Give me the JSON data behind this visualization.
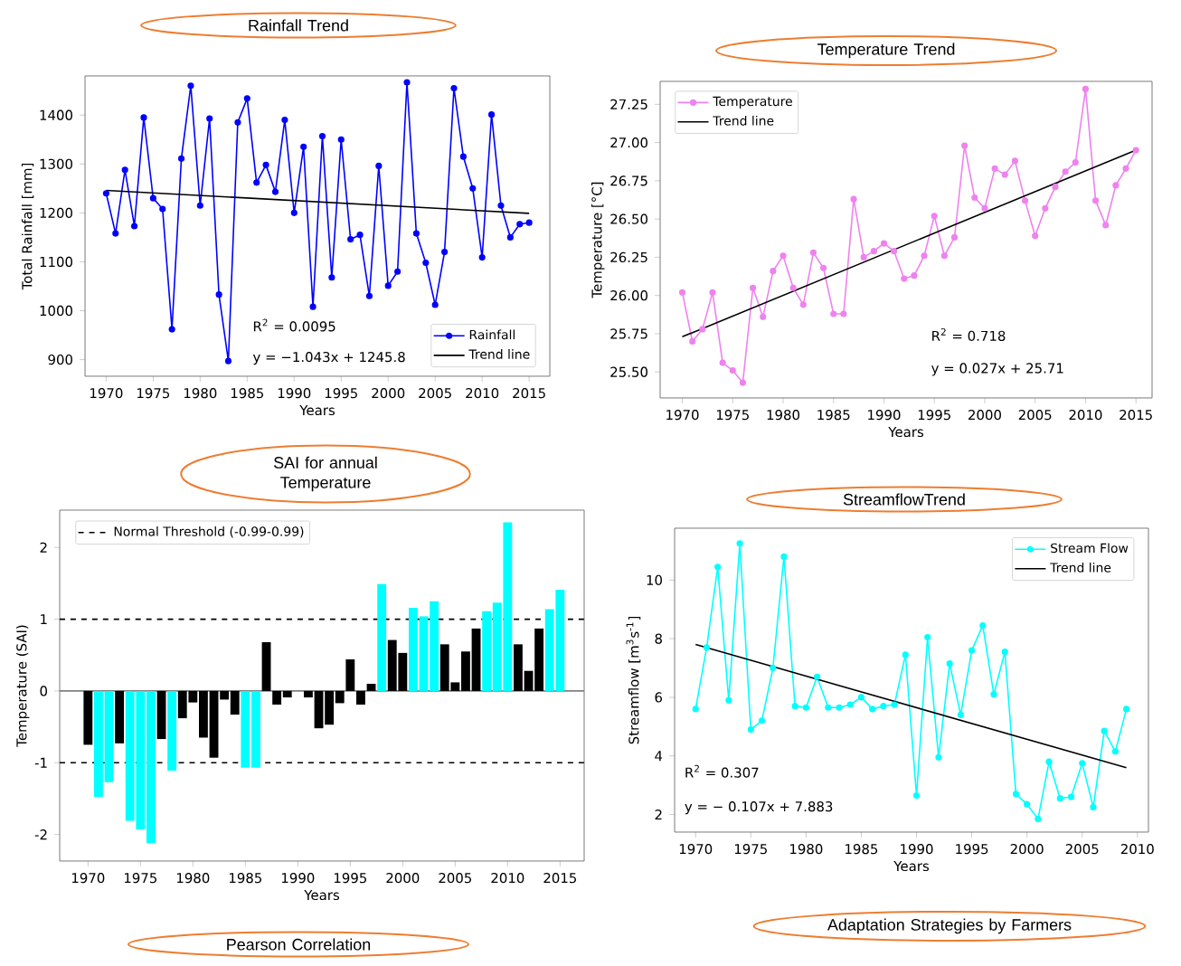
{
  "chart_data": [
    {
      "type": "line",
      "title": "Rainfall Trend",
      "xlabel": "Years",
      "ylabel": "Total Rainfall [mm]",
      "x": [
        1970,
        1971,
        1972,
        1973,
        1974,
        1975,
        1976,
        1977,
        1978,
        1979,
        1980,
        1981,
        1982,
        1983,
        1984,
        1985,
        1986,
        1987,
        1988,
        1989,
        1990,
        1991,
        1992,
        1993,
        1994,
        1995,
        1996,
        1997,
        1998,
        1999,
        2000,
        2001,
        2002,
        2003,
        2004,
        2005,
        2006,
        2007,
        2008,
        2009,
        2010,
        2011,
        2012,
        2013,
        2014,
        2015
      ],
      "series": [
        {
          "name": "Rainfall",
          "color": "#0000ff",
          "marker": "circle",
          "values": [
            1240,
            1158,
            1288,
            1173,
            1395,
            1230,
            1208,
            962,
            1311,
            1460,
            1215,
            1393,
            1033,
            897,
            1385,
            1434,
            1262,
            1298,
            1243,
            1390,
            1200,
            1335,
            1008,
            1357,
            1068,
            1350,
            1146,
            1155,
            1030,
            1296,
            1051,
            1080,
            1467,
            1158,
            1098,
            1012,
            1120,
            1455,
            1315,
            1250,
            1109,
            1401,
            1215,
            1150,
            1177,
            1180
          ]
        },
        {
          "name": "Trend line",
          "color": "#000000",
          "marker": "none",
          "x": [
            1970,
            2015
          ],
          "values": [
            1246,
            1199
          ]
        }
      ],
      "xlim": [
        1967.75,
        2017.2
      ],
      "ylim": [
        866,
        1480
      ],
      "xticks": [
        1970,
        1975,
        1980,
        1985,
        1990,
        1995,
        2000,
        2005,
        2010,
        2015
      ],
      "yticks": [
        900,
        1000,
        1100,
        1200,
        1300,
        1400
      ],
      "legend": "bottom right",
      "annotations": [
        "R$^{2}$ = 0.0095",
        "y = −1.043x + 1245.8"
      ]
    },
    {
      "type": "line",
      "title": "Temperature Trend",
      "xlabel": "Years",
      "ylabel": "Temperature [°C]",
      "x": [
        1970,
        1971,
        1972,
        1973,
        1974,
        1975,
        1976,
        1977,
        1978,
        1979,
        1980,
        1981,
        1982,
        1983,
        1984,
        1985,
        1986,
        1987,
        1988,
        1989,
        1990,
        1991,
        1992,
        1993,
        1994,
        1995,
        1996,
        1997,
        1998,
        1999,
        2000,
        2001,
        2002,
        2003,
        2004,
        2005,
        2006,
        2007,
        2008,
        2009,
        2010,
        2011,
        2012,
        2013,
        2014,
        2015
      ],
      "series": [
        {
          "name": "Temperature",
          "color": "#ee82ee",
          "marker": "circle",
          "values": [
            26.02,
            25.7,
            25.78,
            26.02,
            25.56,
            25.51,
            25.43,
            26.05,
            25.86,
            26.16,
            26.26,
            26.05,
            25.94,
            26.28,
            26.18,
            25.88,
            25.88,
            26.63,
            26.25,
            26.29,
            26.34,
            26.29,
            26.11,
            26.13,
            26.26,
            26.52,
            26.26,
            26.38,
            26.98,
            26.64,
            26.57,
            26.83,
            26.79,
            26.88,
            26.62,
            26.39,
            26.57,
            26.71,
            26.81,
            26.87,
            27.35,
            26.62,
            26.46,
            26.72,
            26.83,
            26.95
          ]
        },
        {
          "name": "Trend line",
          "color": "#000000",
          "marker": "none",
          "x": [
            1970,
            2015
          ],
          "values": [
            25.73,
            26.95
          ]
        }
      ],
      "xlim": [
        1967.8,
        2016.6
      ],
      "ylim": [
        25.33,
        27.4
      ],
      "xticks": [
        1970,
        1975,
        1980,
        1985,
        1990,
        1995,
        2000,
        2005,
        2010,
        2015
      ],
      "yticks": [
        {
          "value": 25.5,
          "label": "25.50"
        },
        25.75,
        {
          "value": 26.0,
          "label": "26.00"
        },
        26.25,
        {
          "value": 26.5,
          "label": "26.50"
        },
        26.75,
        {
          "value": 27.0,
          "label": "27.00"
        },
        27.25
      ],
      "legend": "top left",
      "annotations": [
        "R$^{2}$ = 0.718",
        "y = 0.027x + 25.71"
      ]
    },
    {
      "type": "bar",
      "title": "SAI for annual Temperature",
      "xlabel": "Years",
      "ylabel": "Temperature (SAI)",
      "x": [
        1970,
        1971,
        1972,
        1973,
        1974,
        1975,
        1976,
        1977,
        1978,
        1979,
        1980,
        1981,
        1982,
        1983,
        1984,
        1985,
        1986,
        1987,
        1988,
        1989,
        1990,
        1991,
        1992,
        1993,
        1994,
        1995,
        1996,
        1997,
        1998,
        1999,
        2000,
        2001,
        2002,
        2003,
        2004,
        2005,
        2006,
        2007,
        2008,
        2009,
        2010,
        2011,
        2012,
        2013,
        2014,
        2015
      ],
      "values": [
        -0.75,
        -1.48,
        -1.27,
        -0.73,
        -1.81,
        -1.93,
        -2.12,
        -0.67,
        -1.11,
        -0.38,
        -0.16,
        -0.65,
        -0.93,
        -0.12,
        -0.33,
        -1.07,
        -1.07,
        0.68,
        -0.19,
        -0.09,
        0,
        -0.09,
        -0.52,
        -0.47,
        -0.17,
        0.44,
        -0.19,
        0.1,
        1.49,
        0.71,
        0.53,
        1.16,
        1.04,
        1.25,
        0.65,
        0.12,
        0.55,
        0.87,
        1.11,
        1.23,
        2.35,
        0.65,
        0.28,
        0.87,
        1.14,
        1.41
      ],
      "colors": [
        "#000000",
        "#00ffff",
        "#00ffff",
        "#000000",
        "#00ffff",
        "#00ffff",
        "#00ffff",
        "#000000",
        "#00ffff",
        "#000000",
        "#000000",
        "#000000",
        "#000000",
        "#000000",
        "#000000",
        "#00ffff",
        "#00ffff",
        "#000000",
        "#000000",
        "#000000",
        "#000000",
        "#000000",
        "#000000",
        "#000000",
        "#000000",
        "#000000",
        "#000000",
        "#000000",
        "#00ffff",
        "#000000",
        "#000000",
        "#00ffff",
        "#00ffff",
        "#00ffff",
        "#000000",
        "#000000",
        "#000000",
        "#000000",
        "#00ffff",
        "#00ffff",
        "#00ffff",
        "#000000",
        "#000000",
        "#000000",
        "#00ffff",
        "#00ffff"
      ],
      "xlim": [
        1967.3,
        2017.3
      ],
      "ylim": [
        -2.37,
        2.52
      ],
      "xticks": [
        1970,
        1975,
        1980,
        1985,
        1990,
        1995,
        2000,
        2005,
        2010,
        2015
      ],
      "yticks": [
        -2,
        -1,
        0,
        1,
        2
      ],
      "ref_lines": [
        {
          "axis": "y",
          "value": 1,
          "label": "Normal Threshold (-0.99-0.99)",
          "color": "#000000",
          "line_style": "dashed"
        },
        {
          "axis": "y",
          "value": -1,
          "color": "#000000",
          "line_style": "dashed"
        },
        {
          "axis": "y",
          "value": 0,
          "color": "#808080",
          "line_style": "solid"
        }
      ],
      "legend": "top left"
    },
    {
      "type": "line",
      "title": "StreamflowTrend",
      "xlabel": "Years",
      "ylabel": "Streamflow [m$^{3}$s$^{-1}$]",
      "x": [
        1970,
        1971,
        1972,
        1973,
        1974,
        1975,
        1976,
        1977,
        1978,
        1979,
        1980,
        1981,
        1982,
        1983,
        1984,
        1985,
        1986,
        1987,
        1988,
        1989,
        1990,
        1991,
        1992,
        1993,
        1994,
        1995,
        1996,
        1997,
        1998,
        1999,
        2000,
        2001,
        2002,
        2003,
        2004,
        2005,
        2006,
        2007,
        2008,
        2009
      ],
      "series": [
        {
          "name": "Stream Flow",
          "color": "#00ffff",
          "marker": "circle",
          "values": [
            5.6,
            7.7,
            10.45,
            5.9,
            11.25,
            4.9,
            5.2,
            7.0,
            10.8,
            5.7,
            5.65,
            6.7,
            5.65,
            5.65,
            5.75,
            6.0,
            5.6,
            5.7,
            5.75,
            7.45,
            2.65,
            8.05,
            3.95,
            7.15,
            5.4,
            7.6,
            8.45,
            6.1,
            7.55,
            2.7,
            2.35,
            1.85,
            3.8,
            2.55,
            2.6,
            3.75,
            2.25,
            4.85,
            4.15,
            5.6
          ]
        },
        {
          "name": "Trend line",
          "color": "#000000",
          "marker": "none",
          "x": [
            1970,
            2009
          ],
          "values": [
            7.8,
            3.6
          ]
        }
      ],
      "xlim": [
        1968.1,
        2011
      ],
      "ylim": [
        1.4,
        11.77
      ],
      "xticks": [
        1970,
        1975,
        1980,
        1985,
        1990,
        1995,
        2000,
        2005,
        2010
      ],
      "yticks": [
        2,
        4,
        6,
        8,
        10
      ],
      "legend": "top right",
      "annotations": [
        "R$^{2}$ = 0.307",
        "y = − 0.107x + 7.883"
      ]
    },
    {
      "type": "other",
      "title": "Pearson Correlation"
    },
    {
      "type": "other",
      "title": "Adaptation Strategies by Farmers"
    }
  ]
}
